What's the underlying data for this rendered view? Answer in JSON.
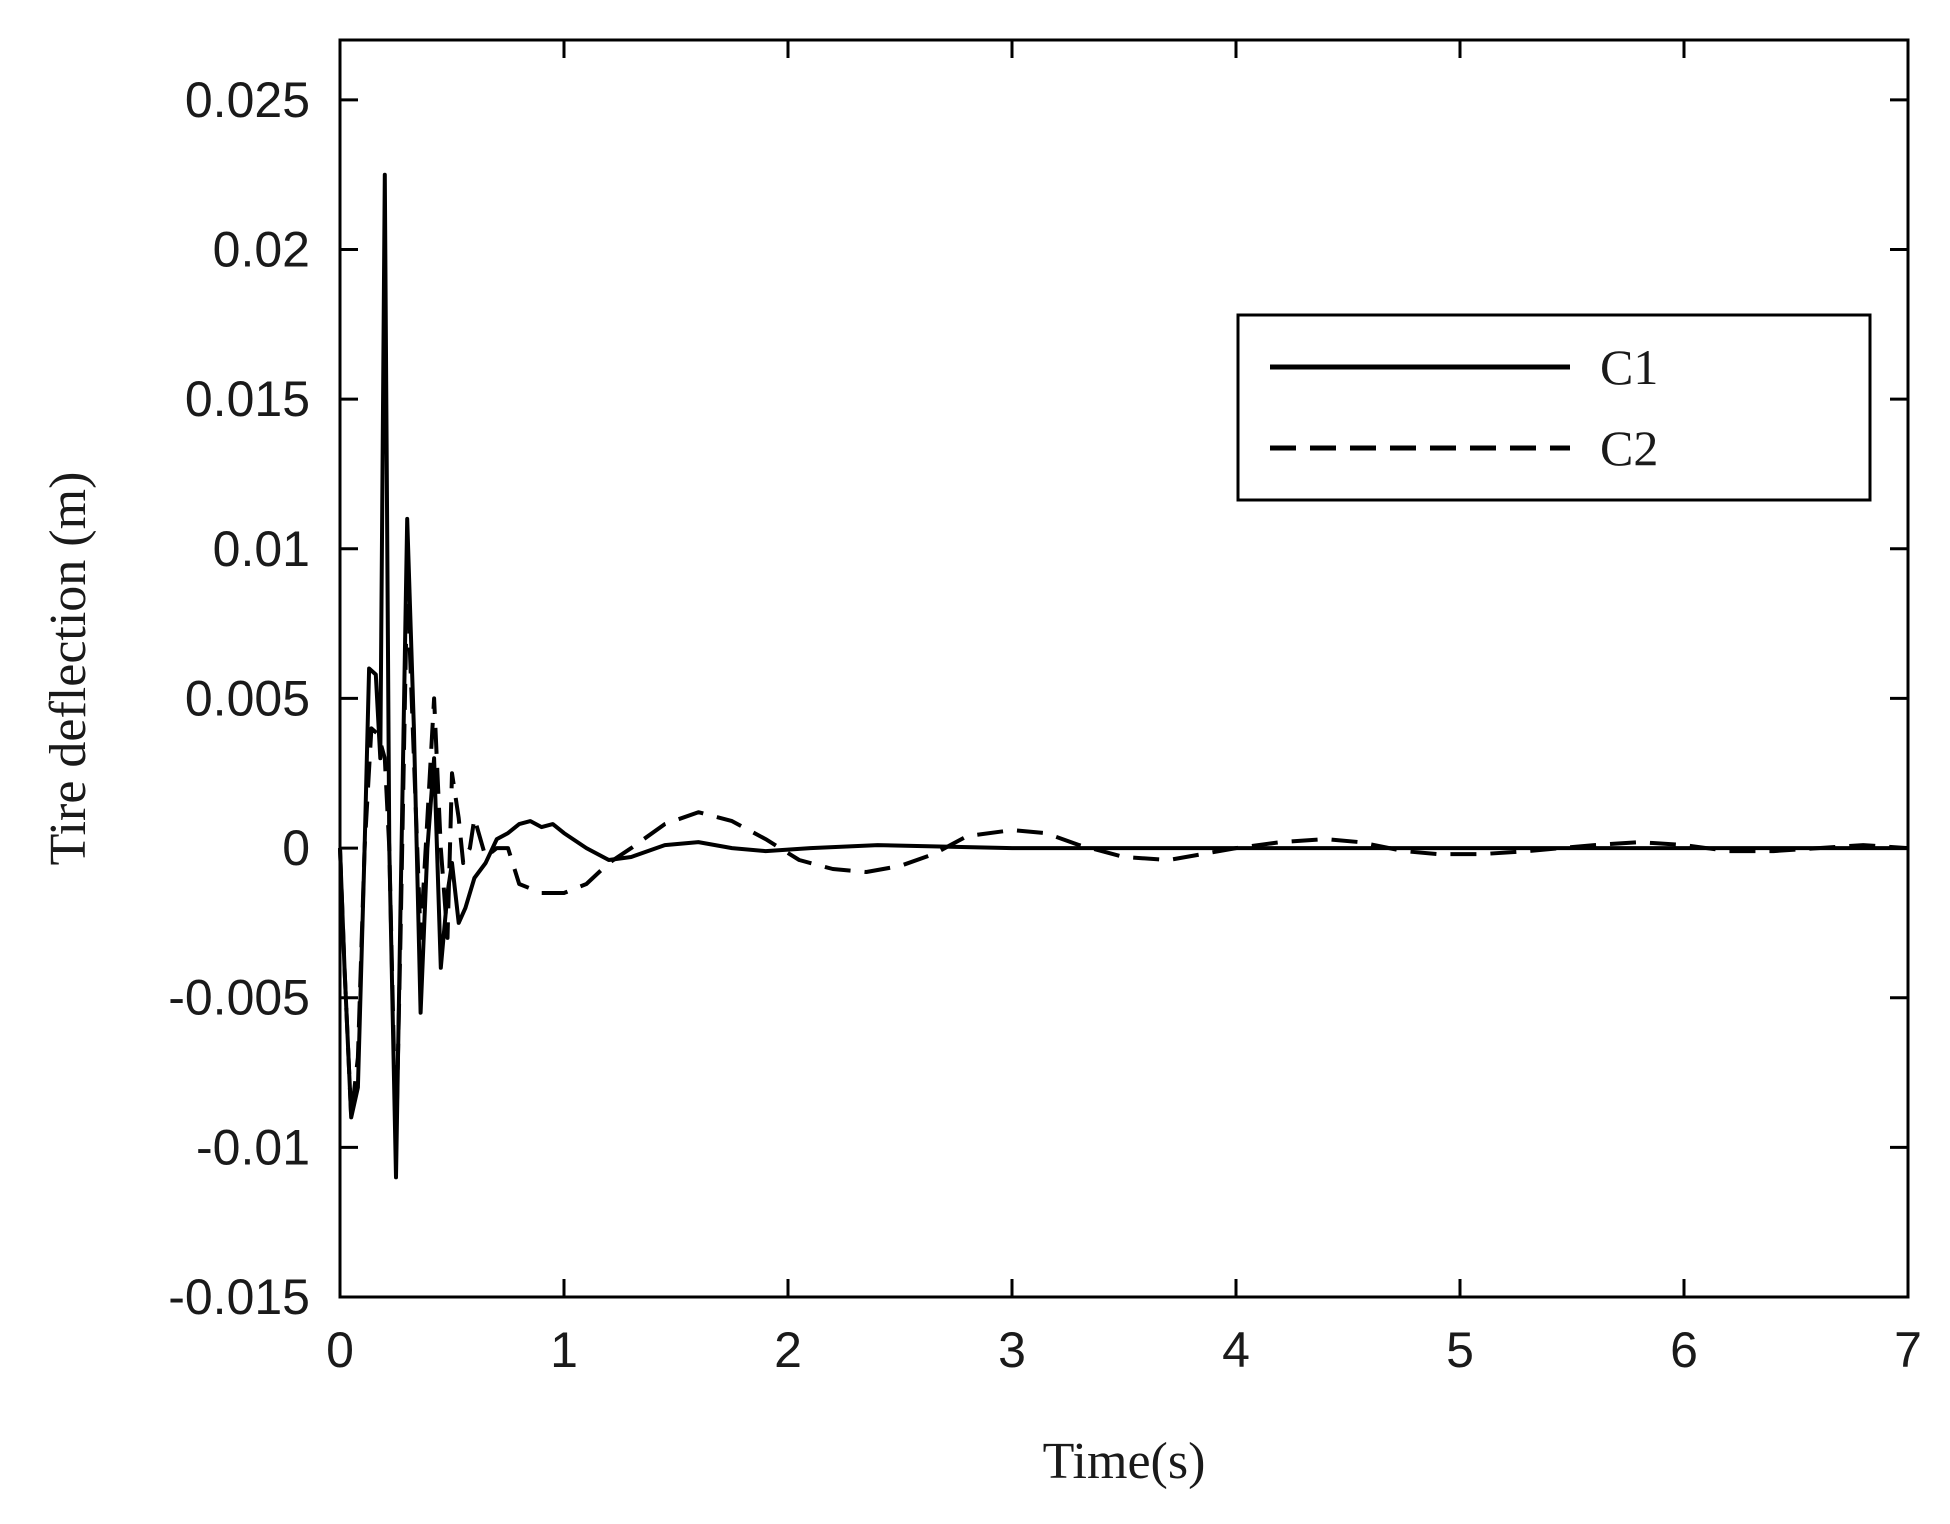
{
  "chart_data": {
    "type": "line",
    "title": "",
    "xlabel": "Time(s)",
    "ylabel": "Tire deflection (m)",
    "xlim": [
      0,
      7
    ],
    "ylim": [
      -0.015,
      0.027
    ],
    "x_ticks": [
      0,
      1,
      2,
      3,
      4,
      5,
      6,
      7
    ],
    "x_tick_labels": [
      "0",
      "1",
      "2",
      "3",
      "4",
      "5",
      "6",
      "7"
    ],
    "y_ticks": [
      -0.015,
      -0.01,
      -0.005,
      0,
      0.005,
      0.01,
      0.015,
      0.02,
      0.025
    ],
    "y_tick_labels": [
      "-0.015",
      "-0.01",
      "-0.005",
      "0",
      "0.005",
      "0.01",
      "0.015",
      "0.02",
      "0.025"
    ],
    "grid": false,
    "legend_position": "top-right",
    "series": [
      {
        "name": "C1",
        "style": "solid",
        "color": "#000000",
        "points": [
          [
            0.0,
            0.0
          ],
          [
            0.02,
            -0.004
          ],
          [
            0.05,
            -0.009
          ],
          [
            0.08,
            -0.008
          ],
          [
            0.11,
            0.0
          ],
          [
            0.13,
            0.006
          ],
          [
            0.16,
            0.0058
          ],
          [
            0.18,
            0.003
          ],
          [
            0.2,
            0.0225
          ],
          [
            0.22,
            0.0
          ],
          [
            0.25,
            -0.011
          ],
          [
            0.27,
            -0.002
          ],
          [
            0.3,
            0.011
          ],
          [
            0.33,
            0.004
          ],
          [
            0.36,
            -0.0055
          ],
          [
            0.39,
            0.0
          ],
          [
            0.42,
            0.003
          ],
          [
            0.45,
            -0.004
          ],
          [
            0.48,
            -0.0015
          ],
          [
            0.5,
            -0.0005
          ],
          [
            0.53,
            -0.0025
          ],
          [
            0.56,
            -0.002
          ],
          [
            0.6,
            -0.001
          ],
          [
            0.65,
            -0.0005
          ],
          [
            0.7,
            0.0003
          ],
          [
            0.75,
            0.0005
          ],
          [
            0.8,
            0.0008
          ],
          [
            0.85,
            0.0009
          ],
          [
            0.9,
            0.0007
          ],
          [
            0.95,
            0.0008
          ],
          [
            1.0,
            0.0005
          ],
          [
            1.1,
            0.0
          ],
          [
            1.2,
            -0.0004
          ],
          [
            1.3,
            -0.0003
          ],
          [
            1.45,
            0.0001
          ],
          [
            1.6,
            0.0002
          ],
          [
            1.75,
            0.0
          ],
          [
            1.9,
            -0.0001
          ],
          [
            2.1,
            0.0
          ],
          [
            2.4,
            0.0001
          ],
          [
            3.0,
            0.0
          ],
          [
            4.0,
            0.0
          ],
          [
            5.0,
            0.0
          ],
          [
            6.0,
            0.0
          ],
          [
            7.0,
            0.0
          ]
        ]
      },
      {
        "name": "C2",
        "style": "dashed",
        "color": "#000000",
        "points": [
          [
            0.0,
            0.0
          ],
          [
            0.02,
            -0.004
          ],
          [
            0.05,
            -0.009
          ],
          [
            0.08,
            -0.007
          ],
          [
            0.11,
            0.0
          ],
          [
            0.14,
            0.004
          ],
          [
            0.17,
            0.0038
          ],
          [
            0.2,
            0.003
          ],
          [
            0.22,
            0.0
          ],
          [
            0.25,
            -0.01
          ],
          [
            0.27,
            -0.003
          ],
          [
            0.3,
            0.009
          ],
          [
            0.33,
            0.003
          ],
          [
            0.36,
            -0.003
          ],
          [
            0.39,
            0.001
          ],
          [
            0.42,
            0.005
          ],
          [
            0.45,
            0.0
          ],
          [
            0.48,
            -0.003
          ],
          [
            0.5,
            0.0025
          ],
          [
            0.53,
            0.001
          ],
          [
            0.55,
            -0.0005
          ],
          [
            0.58,
            0.0
          ],
          [
            0.6,
            0.001
          ],
          [
            0.65,
            -0.0003
          ],
          [
            0.7,
            0.0
          ],
          [
            0.75,
            0.0
          ],
          [
            0.8,
            -0.0012
          ],
          [
            0.9,
            -0.0015
          ],
          [
            1.0,
            -0.0015
          ],
          [
            1.1,
            -0.0012
          ],
          [
            1.2,
            -0.0005
          ],
          [
            1.3,
            0.0
          ],
          [
            1.45,
            0.0008
          ],
          [
            1.6,
            0.0012
          ],
          [
            1.75,
            0.0009
          ],
          [
            1.9,
            0.0003
          ],
          [
            2.05,
            -0.0004
          ],
          [
            2.2,
            -0.0007
          ],
          [
            2.35,
            -0.0008
          ],
          [
            2.5,
            -0.0006
          ],
          [
            2.65,
            -0.0002
          ],
          [
            2.8,
            0.0004
          ],
          [
            3.0,
            0.0006
          ],
          [
            3.15,
            0.0005
          ],
          [
            3.3,
            0.0001
          ],
          [
            3.5,
            -0.0003
          ],
          [
            3.7,
            -0.0004
          ],
          [
            3.85,
            -0.0002
          ],
          [
            4.0,
            0.0
          ],
          [
            4.2,
            0.0002
          ],
          [
            4.4,
            0.0003
          ],
          [
            4.55,
            0.0002
          ],
          [
            4.75,
            -0.0001
          ],
          [
            4.9,
            -0.0002
          ],
          [
            5.1,
            -0.0002
          ],
          [
            5.3,
            -0.0001
          ],
          [
            5.6,
            0.0001
          ],
          [
            5.8,
            0.0002
          ],
          [
            6.0,
            0.0001
          ],
          [
            6.2,
            -0.0001
          ],
          [
            6.4,
            -0.0001
          ],
          [
            6.6,
            0.0
          ],
          [
            6.8,
            0.0001
          ],
          [
            7.0,
            0.0
          ]
        ]
      }
    ]
  }
}
